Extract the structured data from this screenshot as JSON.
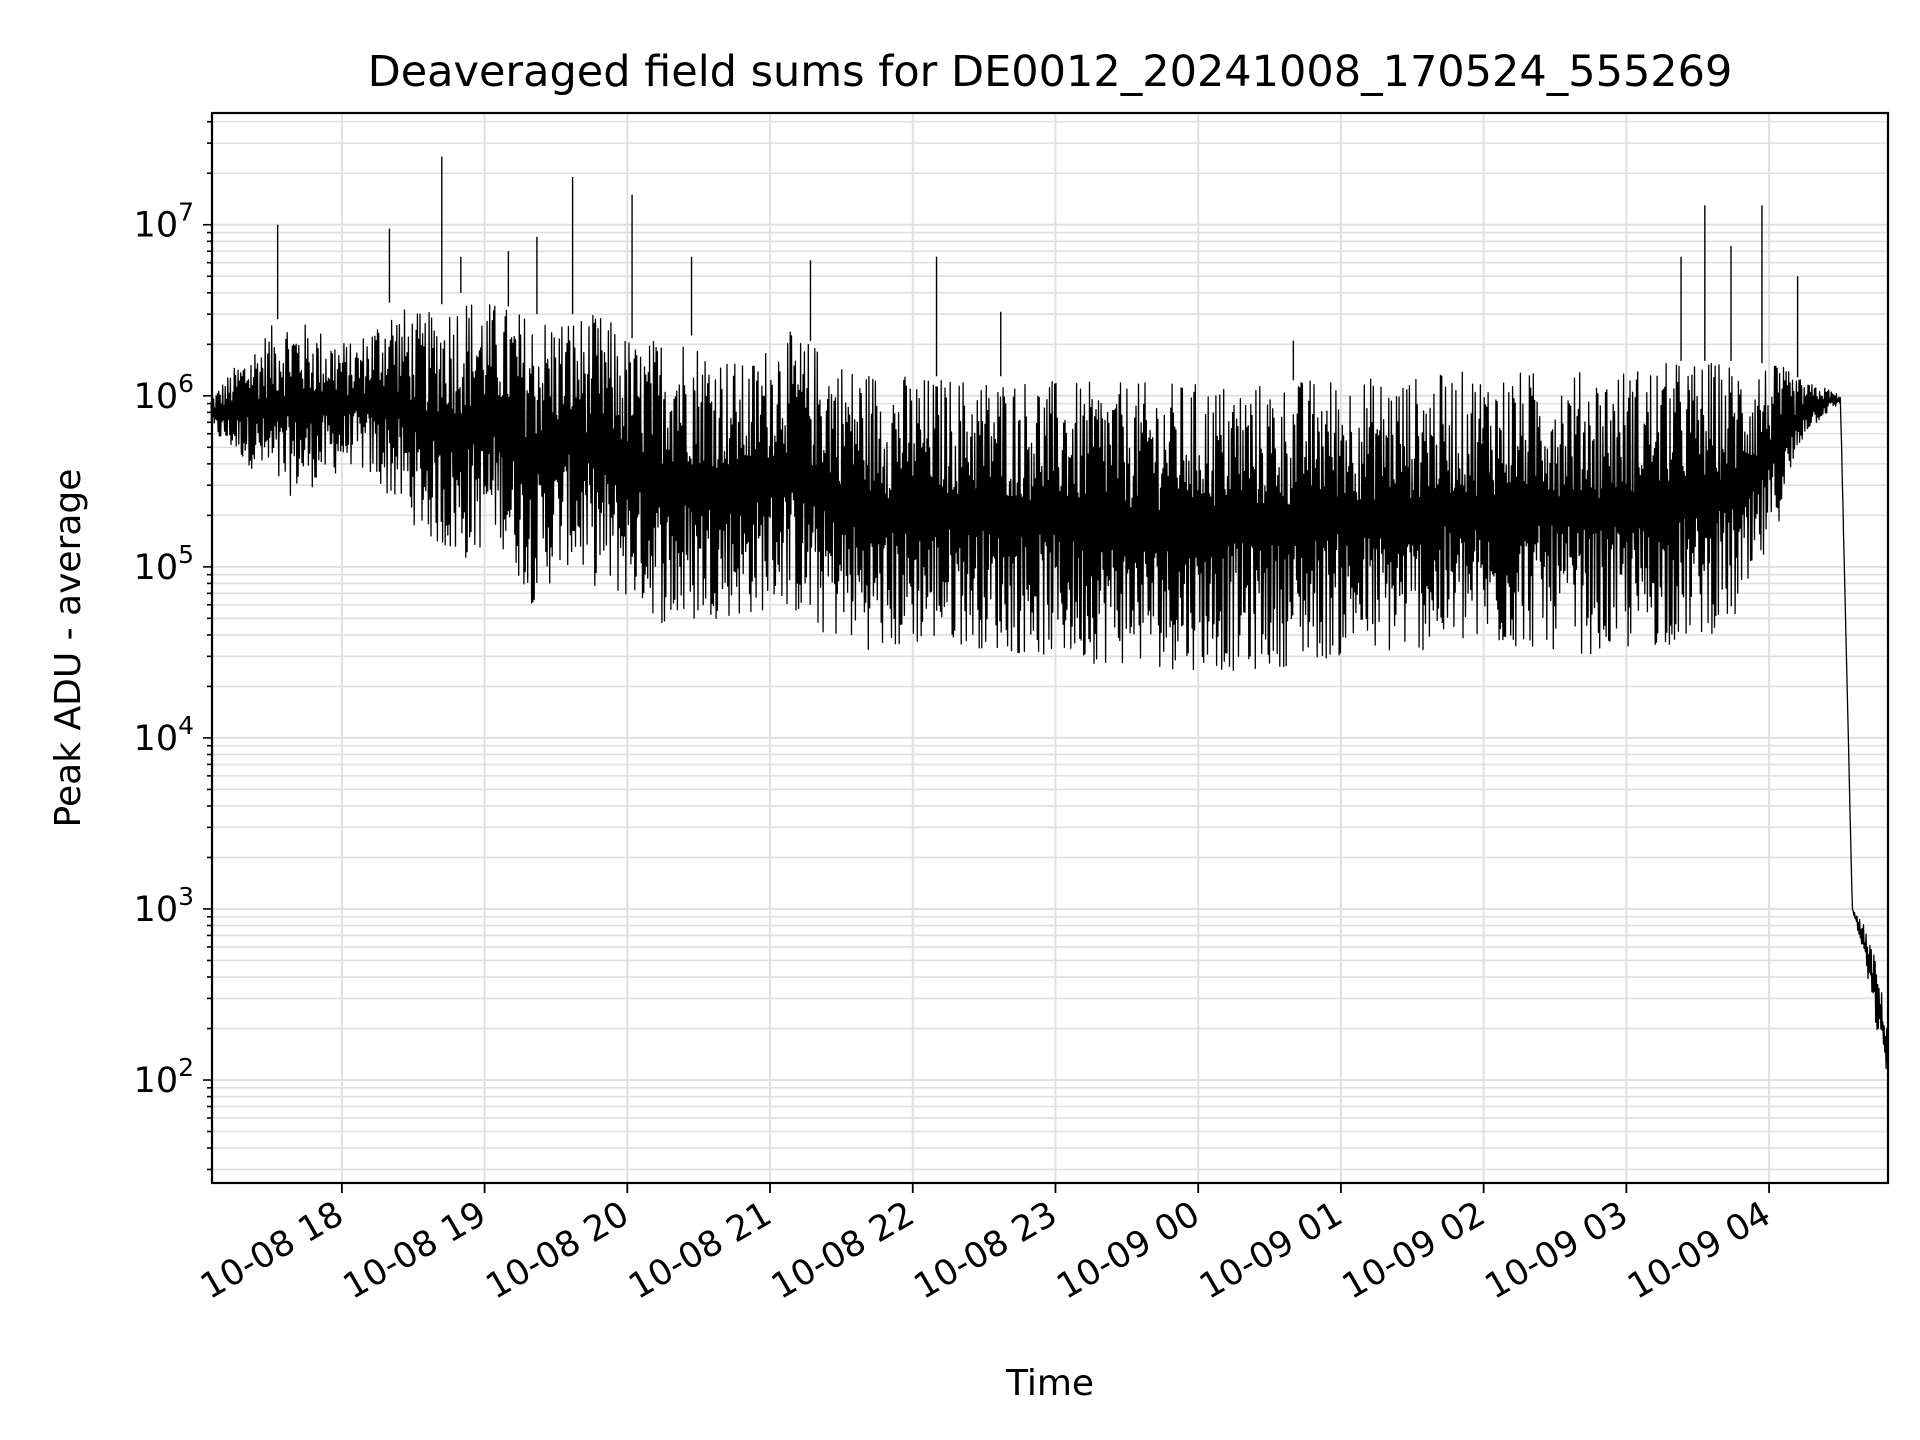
{
  "chart_data": {
    "type": "line",
    "title": "Deaveraged field sums for DE0012_20241008_170524_555269",
    "xlabel": "Time",
    "ylabel": "Peak ADU - average",
    "yscale": "log",
    "ylim": [
      25,
      45000000
    ],
    "xlim": [
      "2024-10-08 17:05:24",
      "2024-10-09 04:50:00"
    ],
    "grid": true,
    "line_color": "#000000",
    "grid_color": "#e0e0e0",
    "x_ticks": [
      {
        "label": "10-08 18",
        "x": "2024-10-08 18:00"
      },
      {
        "label": "10-08 19",
        "x": "2024-10-08 19:00"
      },
      {
        "label": "10-08 20",
        "x": "2024-10-08 20:00"
      },
      {
        "label": "10-08 21",
        "x": "2024-10-08 21:00"
      },
      {
        "label": "10-08 22",
        "x": "2024-10-08 22:00"
      },
      {
        "label": "10-08 23",
        "x": "2024-10-08 23:00"
      },
      {
        "label": "10-09 00",
        "x": "2024-10-09 00:00"
      },
      {
        "label": "10-09 01",
        "x": "2024-10-09 01:00"
      },
      {
        "label": "10-09 02",
        "x": "2024-10-09 02:00"
      },
      {
        "label": "10-09 03",
        "x": "2024-10-09 03:00"
      },
      {
        "label": "10-09 04",
        "x": "2024-10-09 04:00"
      }
    ],
    "y_ticks": [
      {
        "base": "10",
        "exp": "2",
        "value": 100
      },
      {
        "base": "10",
        "exp": "3",
        "value": 1000
      },
      {
        "base": "10",
        "exp": "4",
        "value": 10000
      },
      {
        "base": "10",
        "exp": "5",
        "value": 100000
      },
      {
        "base": "10",
        "exp": "6",
        "value": 1000000
      },
      {
        "base": "10",
        "exp": "7",
        "value": 10000000
      }
    ],
    "series": [
      {
        "x": [
          "2024-10-08 17:05",
          "2024-10-08 17:20",
          "2024-10-08 17:35",
          "2024-10-08 17:50",
          "2024-10-08 18:05",
          "2024-10-08 18:20",
          "2024-10-08 18:35",
          "2024-10-08 18:50",
          "2024-10-08 19:05",
          "2024-10-08 19:20",
          "2024-10-08 19:35",
          "2024-10-08 19:50",
          "2024-10-08 20:05",
          "2024-10-08 20:20",
          "2024-10-08 20:35",
          "2024-10-08 20:50",
          "2024-10-08 21:05",
          "2024-10-08 21:20",
          "2024-10-08 21:35",
          "2024-10-08 21:50",
          "2024-10-08 22:05",
          "2024-10-08 22:20",
          "2024-10-08 22:35",
          "2024-10-08 22:50",
          "2024-10-08 23:05",
          "2024-10-08 23:20",
          "2024-10-08 23:35",
          "2024-10-08 23:50",
          "2024-10-09 00:05",
          "2024-10-09 00:20",
          "2024-10-09 00:35",
          "2024-10-09 00:50",
          "2024-10-09 01:05",
          "2024-10-09 01:20",
          "2024-10-09 01:35",
          "2024-10-09 01:50",
          "2024-10-09 02:05",
          "2024-10-09 02:20",
          "2024-10-09 02:35",
          "2024-10-09 02:50",
          "2024-10-09 03:05",
          "2024-10-09 03:20",
          "2024-10-09 03:35",
          "2024-10-09 03:50",
          "2024-10-09 04:05",
          "2024-10-09 04:15",
          "2024-10-09 04:25",
          "2024-10-09 04:30",
          "2024-10-09 04:35",
          "2024-10-09 04:40",
          "2024-10-09 04:45",
          "2024-10-09 04:50"
        ],
        "y_low": [
          600000,
          400000,
          250000,
          300000,
          400000,
          250000,
          150000,
          100000,
          150000,
          60000,
          100000,
          70000,
          60000,
          40000,
          50000,
          50000,
          60000,
          40000,
          35000,
          30000,
          35000,
          35000,
          32000,
          30000,
          28000,
          27000,
          26000,
          25000,
          25000,
          24000,
          26000,
          28000,
          30000,
          30000,
          32000,
          33000,
          32000,
          33000,
          32000,
          30000,
          32000,
          35000,
          40000,
          50000,
          200000,
          600000,
          800000,
          900000,
          1000,
          500,
          200,
          100
        ],
        "y_high": [
          1000000,
          1800000,
          3000000,
          2500000,
          2000000,
          3500000,
          3000000,
          4000000,
          3500000,
          3000000,
          3000000,
          3000000,
          2000000,
          2500000,
          2000000,
          1500000,
          2500000,
          2000000,
          1500000,
          1400000,
          1300000,
          1300000,
          1300000,
          1300000,
          1200000,
          1200000,
          1200000,
          1200000,
          1200000,
          1200000,
          1200000,
          1300000,
          1300000,
          1300000,
          1300000,
          1400000,
          1400000,
          1400000,
          1400000,
          1400000,
          1500000,
          1600000,
          1600000,
          1600000,
          1500000,
          1200000,
          1100000,
          1000000,
          1000,
          800,
          500,
          200
        ],
        "spikes": [
          {
            "x": "2024-10-08 17:33",
            "y": 10000000
          },
          {
            "x": "2024-10-08 18:20",
            "y": 9500000
          },
          {
            "x": "2024-10-08 18:42",
            "y": 25000000
          },
          {
            "x": "2024-10-08 18:50",
            "y": 6500000
          },
          {
            "x": "2024-10-08 19:10",
            "y": 7000000
          },
          {
            "x": "2024-10-08 19:22",
            "y": 8500000
          },
          {
            "x": "2024-10-08 19:37",
            "y": 19000000
          },
          {
            "x": "2024-10-08 20:02",
            "y": 15000000
          },
          {
            "x": "2024-10-08 20:27",
            "y": 6500000
          },
          {
            "x": "2024-10-08 21:17",
            "y": 6200000
          },
          {
            "x": "2024-10-08 22:10",
            "y": 6500000
          },
          {
            "x": "2024-10-08 22:37",
            "y": 3100000
          },
          {
            "x": "2024-10-09 00:40",
            "y": 2100000
          },
          {
            "x": "2024-10-09 03:23",
            "y": 6500000
          },
          {
            "x": "2024-10-09 03:33",
            "y": 13000000
          },
          {
            "x": "2024-10-09 03:44",
            "y": 7500000
          },
          {
            "x": "2024-10-09 03:57",
            "y": 13000000
          },
          {
            "x": "2024-10-09 04:12",
            "y": 5000000
          }
        ]
      }
    ]
  }
}
